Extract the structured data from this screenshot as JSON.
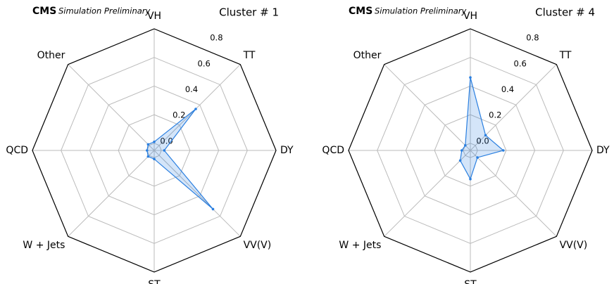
{
  "chart_data": [
    {
      "type": "radar",
      "experiment": "CMS",
      "label": "Simulation Preliminary",
      "title": "Cluster # 1",
      "categories": [
        "VH",
        "TT",
        "DY",
        "VV(V)",
        "ST",
        "W + Jets",
        "QCD",
        "Other"
      ],
      "values": [
        0.01,
        0.36,
        0.02,
        0.53,
        0.01,
        0.01,
        0.0,
        0.01
      ],
      "color": "#2a7fe0",
      "ylim": [
        -0.05,
        0.8
      ],
      "yticks": [
        {
          "value": 0,
          "label": "0.0"
        },
        0.2,
        0.4,
        0.6,
        0.8
      ],
      "grid": true
    },
    {
      "type": "radar",
      "experiment": "CMS",
      "label": "Simulation Preliminary",
      "title": "Cluster # 4",
      "categories": [
        "VH",
        "TT",
        "DY",
        "VV(V)",
        "ST",
        "W + Jets",
        "QCD",
        "Other"
      ],
      "values": [
        0.46,
        0.1,
        0.18,
        0.02,
        0.15,
        0.05,
        0.01,
        0.0
      ],
      "color": "#2a7fe0",
      "ylim": [
        -0.05,
        0.8
      ],
      "yticks": [
        {
          "value": 0,
          "label": "0.0"
        },
        0.2,
        0.4,
        0.6,
        0.8
      ],
      "grid": true
    }
  ]
}
